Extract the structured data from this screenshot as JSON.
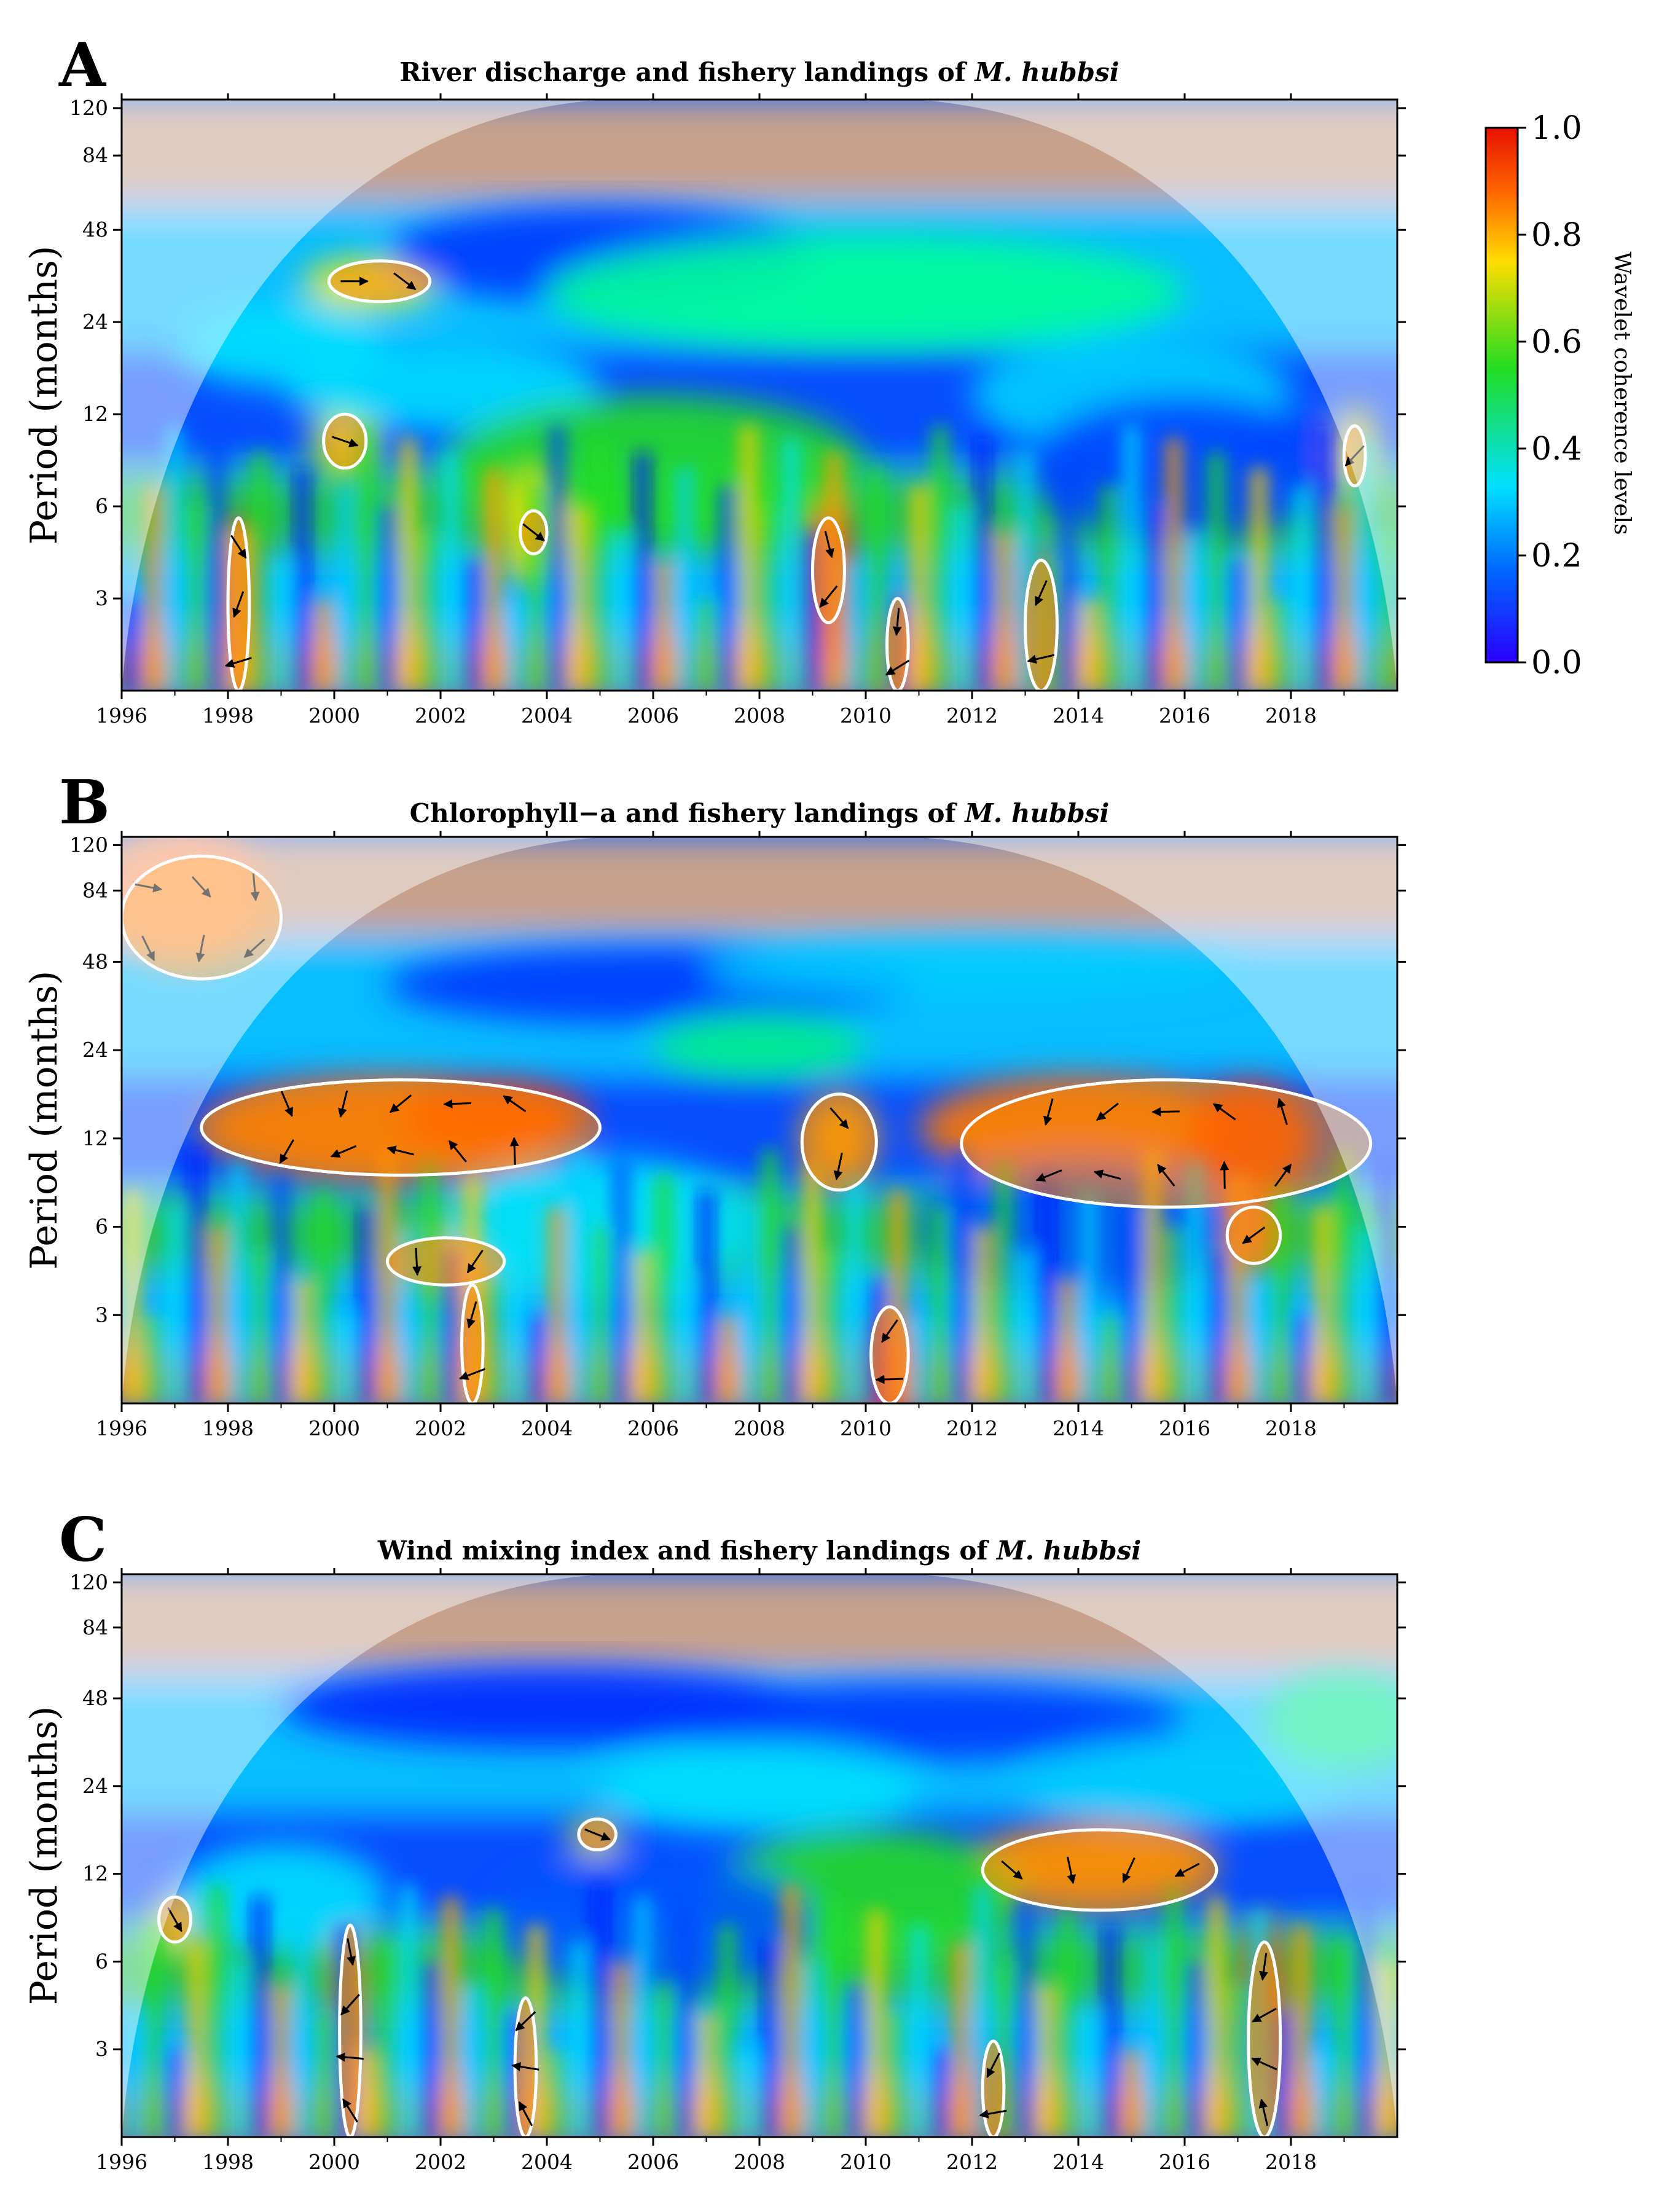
{
  "chart_data": [
    {
      "type": "heatmap",
      "panel_label": "A",
      "title_main": "River discharge and fishery landings of ",
      "title_species": "M. hubbsi",
      "ylabel": "Period (months)",
      "x_ticks": [
        "1996",
        "1998",
        "2000",
        "2002",
        "2004",
        "2006",
        "2008",
        "2010",
        "2012",
        "2014",
        "2016",
        "2018"
      ],
      "y_ticks": [
        "3",
        "6",
        "12",
        "24",
        "48",
        "84",
        "120"
      ],
      "xlim": [
        1996,
        2020
      ],
      "ylim": [
        1.5,
        128
      ],
      "y_scale": "log2",
      "significant_regions": [
        {
          "x": [
            1999.9,
            2001.8
          ],
          "y": [
            28,
            38
          ]
        },
        {
          "x": [
            1999.8,
            2000.6
          ],
          "y": [
            8,
            12
          ]
        },
        {
          "x": [
            2003.5,
            2004.0
          ],
          "y": [
            4.2,
            5.8
          ]
        },
        {
          "x": [
            1998.0,
            1998.4
          ],
          "y": [
            1.5,
            5.5
          ]
        },
        {
          "x": [
            2009.0,
            2009.6
          ],
          "y": [
            2.5,
            5.5
          ]
        },
        {
          "x": [
            2010.4,
            2010.8
          ],
          "y": [
            1.5,
            3.0
          ]
        },
        {
          "x": [
            2013.0,
            2013.6
          ],
          "y": [
            1.5,
            4.0
          ]
        },
        {
          "x": [
            2019.0,
            2019.4
          ],
          "y": [
            7,
            11
          ]
        }
      ]
    },
    {
      "type": "heatmap",
      "panel_label": "B",
      "title_main": "Chlorophyll−a and fishery landings of ",
      "title_species": "M. hubbsi",
      "ylabel": "Period (months)",
      "x_ticks": [
        "1996",
        "1998",
        "2000",
        "2002",
        "2004",
        "2006",
        "2008",
        "2010",
        "2012",
        "2014",
        "2016",
        "2018"
      ],
      "y_ticks": [
        "3",
        "6",
        "12",
        "24",
        "48",
        "84",
        "120"
      ],
      "xlim": [
        1996,
        2020
      ],
      "ylim": [
        1.5,
        128
      ],
      "y_scale": "log2",
      "significant_regions": [
        {
          "x": [
            1996.0,
            1999.0
          ],
          "y": [
            42,
            110
          ]
        },
        {
          "x": [
            1997.5,
            2005.0
          ],
          "y": [
            9,
            19
          ]
        },
        {
          "x": [
            2008.8,
            2010.2
          ],
          "y": [
            8,
            17
          ]
        },
        {
          "x": [
            2011.8,
            2019.5
          ],
          "y": [
            7,
            19
          ]
        },
        {
          "x": [
            2001.0,
            2003.2
          ],
          "y": [
            3.8,
            5.5
          ]
        },
        {
          "x": [
            2002.4,
            2002.8
          ],
          "y": [
            1.5,
            3.8
          ]
        },
        {
          "x": [
            2010.1,
            2010.8
          ],
          "y": [
            1.5,
            3.2
          ]
        },
        {
          "x": [
            2016.8,
            2017.8
          ],
          "y": [
            4.5,
            7
          ]
        }
      ]
    },
    {
      "type": "heatmap",
      "panel_label": "C",
      "title_main": "Wind mixing index and fishery landings of ",
      "title_species": "M. hubbsi",
      "ylabel": "Period (months)",
      "x_ticks": [
        "1996",
        "1998",
        "2000",
        "2002",
        "2004",
        "2006",
        "2008",
        "2010",
        "2012",
        "2014",
        "2016",
        "2018"
      ],
      "y_ticks": [
        "3",
        "6",
        "12",
        "24",
        "48",
        "84",
        "120"
      ],
      "xlim": [
        1996,
        2020
      ],
      "ylim": [
        1.5,
        128
      ],
      "y_scale": "log2",
      "significant_regions": [
        {
          "x": [
            2004.6,
            2005.3
          ],
          "y": [
            14.5,
            18.5
          ]
        },
        {
          "x": [
            2012.2,
            2016.6
          ],
          "y": [
            9,
            17
          ]
        },
        {
          "x": [
            1996.7,
            1997.3
          ],
          "y": [
            7,
            10
          ]
        },
        {
          "x": [
            2000.1,
            2000.5
          ],
          "y": [
            1.5,
            8
          ]
        },
        {
          "x": [
            2017.2,
            2017.8
          ],
          "y": [
            1.5,
            7
          ]
        },
        {
          "x": [
            2012.2,
            2012.6
          ],
          "y": [
            1.5,
            3.2
          ]
        },
        {
          "x": [
            2003.4,
            2003.8
          ],
          "y": [
            1.5,
            4.5
          ]
        }
      ]
    }
  ],
  "colorbar": {
    "title": "Wavelet coherence levels",
    "ticks": [
      "0.0",
      "0.2",
      "0.4",
      "0.6",
      "0.8",
      "1.0"
    ],
    "range": [
      0,
      1
    ],
    "colors": [
      "#2a00ff",
      "#0066ff",
      "#00e0ff",
      "#22dd22",
      "#ffdd00",
      "#ff6600",
      "#e81000"
    ]
  },
  "colors": {
    "cone_of_influence_tint": "#ffffff",
    "significance_contour": "#ffffff",
    "phase_arrow": "#000000"
  }
}
